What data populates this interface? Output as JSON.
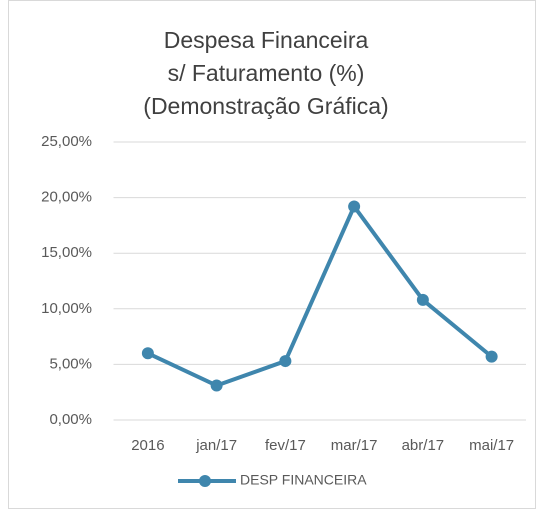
{
  "chart_data": {
    "type": "line",
    "title": [
      "Despesa Financeira",
      "s/ Faturamento (%)",
      "(Demonstração Gráfica)"
    ],
    "categories": [
      "2016",
      "jan/17",
      "fev/17",
      "mar/17",
      "abr/17",
      "mai/17"
    ],
    "series": [
      {
        "name": "DESP FINANCEIRA",
        "color": "#3f86ad",
        "values": [
          6.0,
          3.1,
          5.3,
          19.2,
          10.8,
          5.7
        ]
      }
    ],
    "ylim": [
      0,
      25
    ],
    "yticks": [
      {
        "value": 0,
        "label": "0,00%"
      },
      {
        "value": 5,
        "label": "5,00%"
      },
      {
        "value": 10,
        "label": "10,00%"
      },
      {
        "value": 15,
        "label": "15,00%"
      },
      {
        "value": 20,
        "label": "20,00%"
      },
      {
        "value": 25,
        "label": "25,00%"
      }
    ],
    "grid": true,
    "legend": "bottom"
  }
}
